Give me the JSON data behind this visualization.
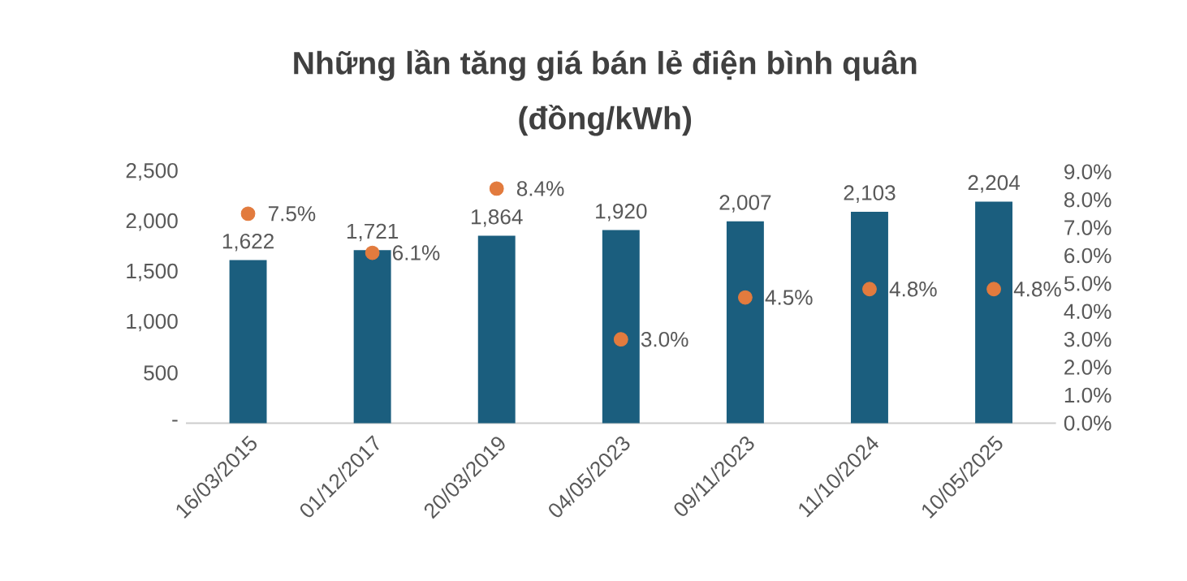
{
  "chart_data": {
    "type": "bar",
    "title": "Những lần tăng giá bán lẻ điện bình quân",
    "subtitle": "(đồng/kWh)",
    "categories": [
      "16/03/2015",
      "01/12/2017",
      "20/03/2019",
      "04/05/2023",
      "09/11/2023",
      "11/10/2024",
      "10/05/2025"
    ],
    "series": [
      {
        "color": "#1b5e7e",
        "values": [
          1622,
          1721,
          1864,
          1920,
          2007,
          2103,
          2204
        ],
        "value_labels": [
          "1,622",
          "1,721",
          "1,864",
          "1,920",
          "2,007",
          "2,103",
          "2,204"
        ]
      },
      {
        "type": "scatter",
        "axis": "y2",
        "color": "#e27b3e",
        "values": [
          7.5,
          6.1,
          8.4,
          3.0,
          4.5,
          4.8,
          4.8
        ],
        "value_labels": [
          "7.5%",
          "6.1%",
          "8.4%",
          "3.0%",
          "4.5%",
          "4.8%",
          "4.8%"
        ]
      }
    ],
    "ylim": [
      0,
      2500
    ],
    "yticks": [
      {
        "value": 0,
        "label": "-"
      },
      500,
      {
        "value": 1000,
        "label": "1,000"
      },
      {
        "value": 1500,
        "label": "1,500"
      },
      {
        "value": 2000,
        "label": "2,000"
      },
      {
        "value": 2500,
        "label": "2,500"
      }
    ],
    "y2lim": [
      0,
      9
    ],
    "y2ticks": [
      {
        "value": 0,
        "label": "0.0%"
      },
      {
        "value": 1,
        "label": "1.0%"
      },
      {
        "value": 2,
        "label": "2.0%"
      },
      {
        "value": 3,
        "label": "3.0%"
      },
      {
        "value": 4,
        "label": "4.0%"
      },
      {
        "value": 5,
        "label": "5.0%"
      },
      {
        "value": 6,
        "label": "6.0%"
      },
      {
        "value": 7,
        "label": "7.0%"
      },
      {
        "value": 8,
        "label": "8.0%"
      },
      {
        "value": 9,
        "label": "9.0%"
      }
    ]
  }
}
